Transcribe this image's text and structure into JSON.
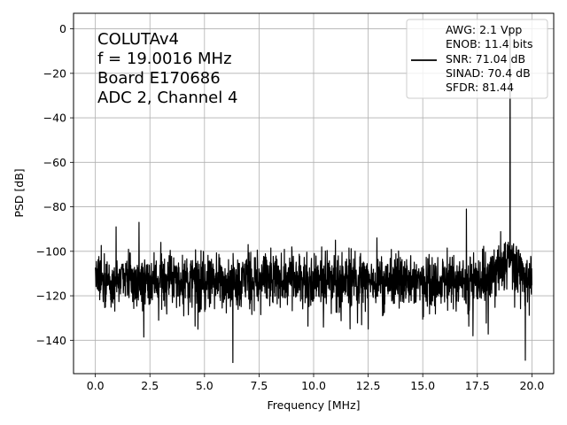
{
  "chart_data": {
    "type": "line",
    "title": "",
    "xlabel": "Frequency [MHz]",
    "ylabel": "PSD [dB]",
    "xlim": [
      -1.0,
      21.0
    ],
    "ylim": [
      -155,
      7
    ],
    "xticks": [
      0.0,
      2.5,
      5.0,
      7.5,
      10.0,
      12.5,
      15.0,
      17.5,
      20.0
    ],
    "xtick_labels": [
      "0.0",
      "2.5",
      "5.0",
      "7.5",
      "10.0",
      "12.5",
      "15.0",
      "17.5",
      "20.0"
    ],
    "yticks": [
      0,
      -20,
      -40,
      -60,
      -80,
      -100,
      -120,
      -140
    ],
    "ytick_labels": [
      "0",
      "−20",
      "−40",
      "−60",
      "−80",
      "−100",
      "−120",
      "−140"
    ],
    "grid": true,
    "line_color": "#000000",
    "annotation_lines": [
      "COLUTAv4",
      "f = 19.0016 MHz",
      "Board E170686",
      "ADC 2, Channel 4"
    ],
    "legend": {
      "placement": "top-right",
      "entries": [
        "AWG: 2.1 Vpp",
        "ENOB: 11.4 bits",
        "SNR: 71.04 dB",
        "SINAD: 70.4 dB",
        "SFDR: 81.44"
      ]
    },
    "series": [
      {
        "noise_floor_db": -113,
        "noise_spread_db": 8,
        "x_start": 0.0,
        "x_end": 20.0,
        "peaks": [
          {
            "x": 19.0016,
            "y": 0
          },
          {
            "x": 0.95,
            "y": -89
          },
          {
            "x": 2.0,
            "y": -87
          },
          {
            "x": 17.0,
            "y": -81
          },
          {
            "x": 11.0,
            "y": -95
          },
          {
            "x": 12.9,
            "y": -94
          },
          {
            "x": 3.0,
            "y": -96
          },
          {
            "x": 7.0,
            "y": -97
          },
          {
            "x": 9.0,
            "y": -98
          }
        ],
        "dips": [
          {
            "x": 6.3,
            "y": -150
          },
          {
            "x": 19.7,
            "y": -149
          },
          {
            "x": 4.7,
            "y": -135
          },
          {
            "x": 17.3,
            "y": -138
          },
          {
            "x": 12.2,
            "y": -133
          },
          {
            "x": 2.9,
            "y": -131
          }
        ]
      }
    ]
  }
}
